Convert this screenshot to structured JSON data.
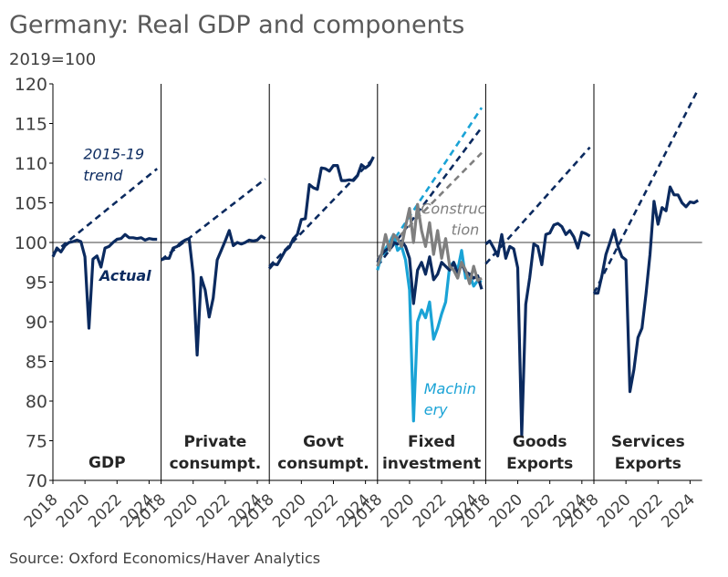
{
  "title": "Germany: Real GDP and components",
  "subtitle": "2019=100",
  "source": "Source: Oxford Economics/Haver Analytics",
  "colors": {
    "actual": "#0b2a5f",
    "machinery": "#1aa3d6",
    "construction": "#7f7f7f",
    "axis": "#000000",
    "text": "#404040"
  },
  "chart_data": {
    "type": "line",
    "ylim": [
      70,
      120
    ],
    "yticks": [
      70,
      75,
      80,
      85,
      90,
      95,
      100,
      105,
      110,
      115,
      120
    ],
    "xlim": [
      2018,
      2024.75
    ],
    "xticks": [
      "2018",
      "2020",
      "2022",
      "2024"
    ],
    "panels": [
      {
        "label": [
          "GDP"
        ],
        "series": [
          {
            "style": "actual",
            "x": [
              2018,
              2018.25,
              2018.5,
              2018.75,
              2019,
              2019.25,
              2019.5,
              2019.75,
              2020,
              2020.25,
              2020.5,
              2020.75,
              2021,
              2021.25,
              2021.5,
              2021.75,
              2022,
              2022.25,
              2022.5,
              2022.75,
              2023,
              2023.25,
              2023.5,
              2023.75,
              2024,
              2024.25,
              2024.5
            ],
            "y": [
              98.2,
              99.3,
              98.8,
              99.6,
              100.0,
              100.1,
              100.3,
              100.1,
              98.2,
              89.2,
              97.9,
              98.3,
              96.9,
              99.3,
              99.5,
              100.0,
              100.4,
              100.5,
              101.0,
              100.6,
              100.6,
              100.5,
              100.6,
              100.3,
              100.5,
              100.4,
              100.4
            ]
          },
          {
            "style": "trend",
            "x": [
              2018,
              2024.5
            ],
            "y": [
              98.6,
              109.3
            ]
          }
        ],
        "annotations": [
          {
            "text": "2015-19",
            "x": 2019.9,
            "y": 110.5,
            "color": "#0b2a5f",
            "italic": true
          },
          {
            "text": "trend",
            "x": 2019.9,
            "y": 107.8,
            "color": "#0b2a5f",
            "italic": true
          },
          {
            "text": "Actual",
            "x": 2020.9,
            "y": 95.2,
            "color": "#0b2a5f",
            "italic": true,
            "bold": true
          }
        ]
      },
      {
        "label": [
          "Private",
          "consumpt."
        ],
        "series": [
          {
            "style": "actual",
            "x": [
              2018,
              2018.25,
              2018.5,
              2018.75,
              2019,
              2019.25,
              2019.5,
              2019.75,
              2020,
              2020.25,
              2020.5,
              2020.75,
              2021,
              2021.25,
              2021.5,
              2021.75,
              2022,
              2022.25,
              2022.5,
              2022.75,
              2023,
              2023.25,
              2023.5,
              2023.75,
              2024,
              2024.25,
              2024.5
            ],
            "y": [
              97.8,
              98.0,
              98.0,
              99.3,
              99.5,
              100.0,
              100.3,
              100.5,
              96.0,
              85.8,
              95.6,
              94.0,
              90.6,
              93.0,
              97.8,
              99.0,
              100.2,
              101.5,
              99.6,
              100.0,
              99.8,
              100.0,
              100.3,
              100.2,
              100.3,
              100.8,
              100.5
            ]
          },
          {
            "style": "trend",
            "x": [
              2018,
              2024.5
            ],
            "y": [
              97.8,
              108.0
            ]
          }
        ]
      },
      {
        "label": [
          "Govt",
          "consumpt."
        ],
        "series": [
          {
            "style": "actual",
            "x": [
              2018,
              2018.25,
              2018.5,
              2018.75,
              2019,
              2019.25,
              2019.5,
              2019.75,
              2020,
              2020.25,
              2020.5,
              2020.75,
              2021,
              2021.25,
              2021.5,
              2021.75,
              2022,
              2022.25,
              2022.5,
              2022.75,
              2023,
              2023.25,
              2023.5,
              2023.75,
              2024,
              2024.25,
              2024.5
            ],
            "y": [
              96.7,
              97.3,
              97.2,
              98.1,
              99.0,
              99.4,
              100.5,
              101.0,
              102.9,
              103.0,
              107.3,
              106.9,
              106.7,
              109.4,
              109.3,
              109.0,
              109.7,
              109.7,
              107.8,
              107.8,
              107.9,
              107.8,
              108.4,
              109.8,
              109.4,
              109.8,
              110.8
            ]
          },
          {
            "style": "trend",
            "x": [
              2018,
              2024.5
            ],
            "y": [
              97.0,
              110.6
            ]
          }
        ]
      },
      {
        "label": [
          "Fixed",
          "investment"
        ],
        "series": [
          {
            "style": "trend_machinery",
            "x": [
              2018,
              2024.5
            ],
            "y": [
              97.2,
              117.0
            ]
          },
          {
            "style": "trend",
            "x": [
              2018,
              2024.5
            ],
            "y": [
              97.0,
              114.5
            ]
          },
          {
            "style": "trend_construction",
            "x": [
              2018,
              2024.5
            ],
            "y": [
              98.0,
              111.3
            ]
          },
          {
            "style": "machinery",
            "x": [
              2018,
              2018.25,
              2018.5,
              2018.75,
              2019,
              2019.25,
              2019.5,
              2019.75,
              2020,
              2020.25,
              2020.5,
              2020.75,
              2021,
              2021.25,
              2021.5,
              2021.75,
              2022,
              2022.25,
              2022.5,
              2022.75,
              2023,
              2023.25,
              2023.5,
              2023.75,
              2024,
              2024.25,
              2024.5
            ],
            "y": [
              96.5,
              98.5,
              99.2,
              100.0,
              101.0,
              99.0,
              99.5,
              97.8,
              94.0,
              77.5,
              90.0,
              91.5,
              90.5,
              92.5,
              87.8,
              89.2,
              91.0,
              92.5,
              97.0,
              97.5,
              96.5,
              99.0,
              95.5,
              96.0,
              94.5,
              95.2,
              95.0
            ]
          },
          {
            "style": "actual",
            "x": [
              2018,
              2018.25,
              2018.5,
              2018.75,
              2019,
              2019.25,
              2019.5,
              2019.75,
              2020,
              2020.25,
              2020.5,
              2020.75,
              2021,
              2021.25,
              2021.5,
              2021.75,
              2022,
              2022.25,
              2022.5,
              2022.75,
              2023,
              2023.25,
              2023.5,
              2023.75,
              2024,
              2024.25,
              2024.5
            ],
            "y": [
              97.5,
              98.5,
              99.0,
              99.4,
              100.0,
              99.8,
              100.2,
              99.5,
              98.0,
              92.3,
              96.5,
              97.5,
              96.0,
              98.2,
              95.3,
              96.0,
              97.5,
              97.0,
              96.5,
              97.5,
              96.0,
              97.3,
              96.3,
              96.0,
              95.5,
              95.8,
              94.1
            ]
          },
          {
            "style": "construction",
            "x": [
              2018,
              2018.25,
              2018.5,
              2018.75,
              2019,
              2019.25,
              2019.5,
              2019.75,
              2020,
              2020.25,
              2020.5,
              2020.75,
              2021,
              2021.25,
              2021.5,
              2021.75,
              2022,
              2022.25,
              2022.5,
              2022.75,
              2023,
              2023.25,
              2023.5,
              2023.75,
              2024,
              2024.25,
              2024.5
            ],
            "y": [
              97.0,
              98.5,
              101.0,
              99.0,
              101.0,
              100.5,
              99.5,
              102.0,
              104.3,
              100.0,
              104.8,
              101.5,
              99.5,
              102.5,
              98.5,
              101.5,
              98.0,
              100.5,
              97.0,
              96.5,
              95.5,
              97.5,
              96.5,
              94.8,
              97.0,
              95.2,
              95.5
            ]
          }
        ],
        "annotations": [
          {
            "text": "Construc",
            "x": 2020.7,
            "y": 103.6,
            "color": "#7f7f7f",
            "italic": true
          },
          {
            "text": "tion",
            "x": 2022.6,
            "y": 101.0,
            "color": "#7f7f7f",
            "italic": true
          },
          {
            "text": "Machin",
            "x": 2020.9,
            "y": 80.9,
            "color": "#1aa3d6",
            "italic": true
          },
          {
            "text": "ery",
            "x": 2020.9,
            "y": 78.3,
            "color": "#1aa3d6",
            "italic": true
          }
        ]
      },
      {
        "label": [
          "Goods",
          "Exports"
        ],
        "series": [
          {
            "style": "actual",
            "x": [
              2018,
              2018.25,
              2018.5,
              2018.75,
              2019,
              2019.25,
              2019.5,
              2019.75,
              2020,
              2020.25,
              2020.5,
              2020.75,
              2021,
              2021.25,
              2021.5,
              2021.75,
              2022,
              2022.25,
              2022.5,
              2022.75,
              2023,
              2023.25,
              2023.5,
              2023.75,
              2024,
              2024.25,
              2024.5
            ],
            "y": [
              99.8,
              100.2,
              99.3,
              98.3,
              101.0,
              98.0,
              99.5,
              99.2,
              96.8,
              75.7,
              92.2,
              95.6,
              99.8,
              99.5,
              97.2,
              101.0,
              101.2,
              102.2,
              102.4,
              102.0,
              101.0,
              101.5,
              100.7,
              99.3,
              101.3,
              101.1,
              100.8
            ]
          },
          {
            "style": "trend",
            "x": [
              2018,
              2024.5
            ],
            "y": [
              97.3,
              112.0
            ]
          }
        ]
      },
      {
        "label": [
          "Services",
          "Exports"
        ],
        "series": [
          {
            "style": "actual",
            "x": [
              2018,
              2018.25,
              2018.5,
              2018.75,
              2019,
              2019.25,
              2019.5,
              2019.75,
              2020,
              2020.25,
              2020.5,
              2020.75,
              2021,
              2021.25,
              2021.5,
              2021.75,
              2022,
              2022.25,
              2022.5,
              2022.75,
              2023,
              2023.25,
              2023.5,
              2023.75,
              2024,
              2024.25,
              2024.5
            ],
            "y": [
              93.6,
              93.6,
              95.8,
              98.5,
              100.0,
              101.6,
              99.5,
              98.2,
              97.8,
              81.2,
              84.0,
              88.0,
              89.2,
              93.5,
              98.5,
              105.2,
              102.3,
              104.4,
              104.0,
              107.0,
              106.0,
              106.0,
              105.0,
              104.5,
              105.1,
              105.0,
              105.3
            ]
          },
          {
            "style": "trend",
            "x": [
              2018,
              2024.5
            ],
            "y": [
              93.6,
              119.3
            ]
          }
        ]
      }
    ]
  }
}
